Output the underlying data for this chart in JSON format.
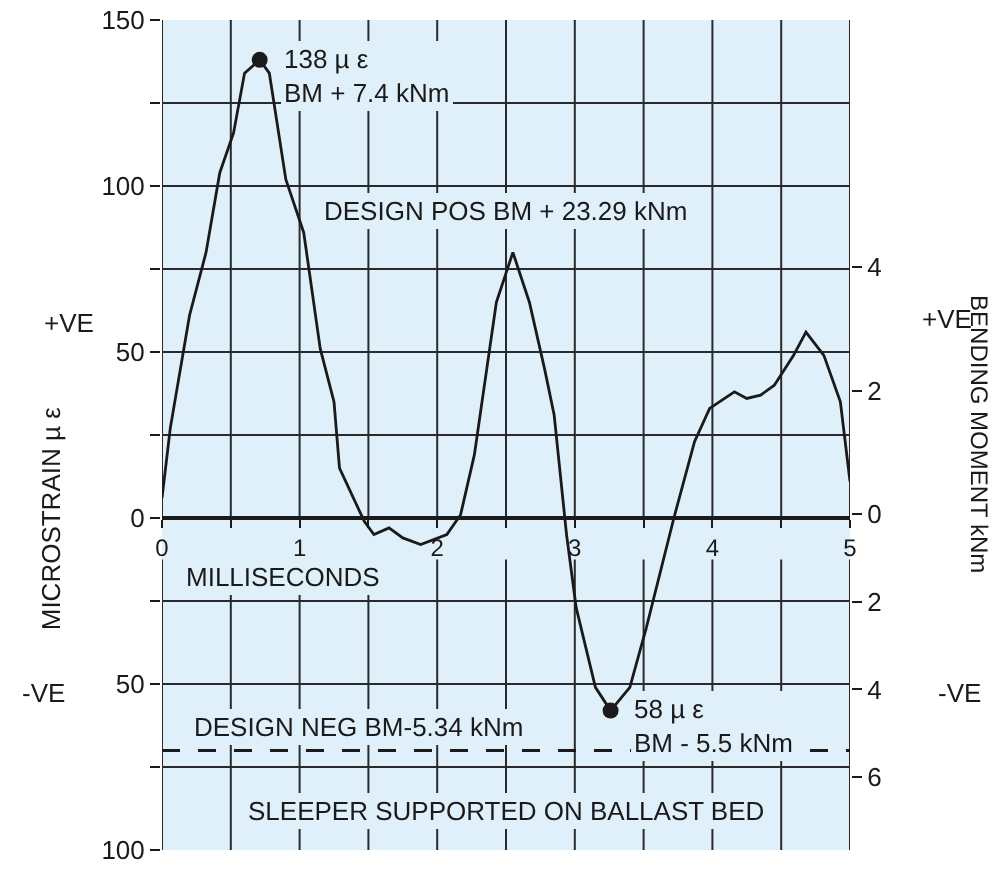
{
  "chart_data": {
    "type": "line",
    "ylabel": "MICROSTRAIN µ ε",
    "y2label": "BENDING MOMENT kNm",
    "xlabel": "MILLISECONDS",
    "x": [
      0,
      0.06,
      0.2,
      0.32,
      0.42,
      0.52,
      0.6,
      0.71,
      0.78,
      0.9,
      1.03,
      1.15,
      1.25,
      1.29,
      1.47,
      1.54,
      1.65,
      1.75,
      1.88,
      2.07,
      2.17,
      2.27,
      2.43,
      2.55,
      2.67,
      2.78,
      2.85,
      2.94,
      3.01,
      3.15,
      3.26,
      3.4,
      3.52,
      3.72,
      3.87,
      3.98,
      4.16,
      4.25,
      4.35,
      4.45,
      4.59,
      4.68,
      4.81,
      4.93,
      5.0
    ],
    "series": [
      {
        "color": "#1a1a1a",
        "values": [
          6,
          27,
          61,
          80,
          104,
          116,
          134,
          138,
          134,
          102,
          86,
          51,
          35,
          15,
          -1,
          -5,
          -3,
          -6,
          -8,
          -5,
          1,
          19,
          65,
          80,
          65,
          45,
          31,
          -5,
          -27,
          -51,
          -58,
          -51,
          -33,
          0,
          23,
          33,
          38,
          36,
          37,
          40,
          49,
          56,
          49,
          35,
          11
        ]
      },
      {
        "type": "scatter",
        "marker": "circle",
        "color": "#1a1a1a",
        "x": [
          0.71,
          3.26
        ],
        "values": [
          138,
          -58
        ]
      }
    ],
    "xlim": [
      0,
      5
    ],
    "xticks": [
      0,
      {
        "value": 0.5,
        "label": null
      },
      1,
      {
        "value": 1.5,
        "label": null
      },
      2,
      {
        "value": 2.5,
        "label": null
      },
      3,
      {
        "value": 3.5,
        "label": null
      },
      4,
      {
        "value": 4.5,
        "label": null
      },
      5
    ],
    "ylim": [
      -100,
      150
    ],
    "yticks": [
      {
        "value": -100,
        "label": "100"
      },
      {
        "value": -75,
        "label": null
      },
      {
        "value": -50,
        "label": "50"
      },
      {
        "value": -25,
        "label": null
      },
      0,
      {
        "value": 25,
        "label": null
      },
      50,
      {
        "value": 75,
        "label": null
      },
      100,
      {
        "value": 125,
        "label": null
      },
      150
    ],
    "y2lim": [
      -5.44,
      8.0
    ],
    "y2ticks": [
      0,
      2,
      4
    ],
    "y3lim": [
      -7.66,
      11.26
    ],
    "y3ticks": [
      {
        "value": -2,
        "label": "2"
      },
      {
        "value": -4,
        "label": "4"
      },
      {
        "value": -6,
        "label": "6"
      }
    ],
    "grid": true,
    "marker": "none",
    "line_style": "solid",
    "ref_lines": [
      {
        "axis": "y",
        "value": -70,
        "label": "DESIGN NEG BM-5.34 kNm",
        "color": "#1a1a1a",
        "line_style": "dashed"
      }
    ],
    "annotations": [
      {
        "text": "138 µ ε\nBM + 7.4 kNm",
        "x": 0.71,
        "y": 138
      },
      {
        "text": "58 µ ε\nBM - 5.5 kNm",
        "x": 3.26,
        "y": -58
      },
      "DESIGN POS BM + 23.29 kNm",
      "SLEEPER SUPPORTED ON BALLAST BED",
      "+VE",
      "-VE",
      "+VE",
      "-VE"
    ]
  }
}
